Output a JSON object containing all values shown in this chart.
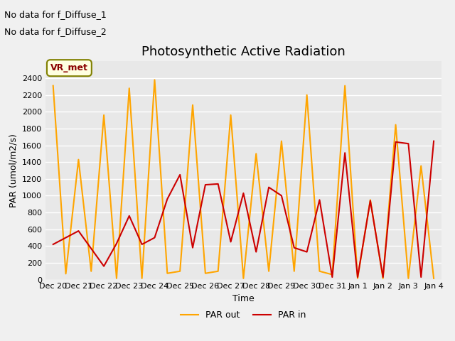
{
  "title": "Photosynthetic Active Radiation",
  "xlabel": "Time",
  "ylabel": "PAR (umol/m2/s)",
  "annotations": [
    "No data for f_Diffuse_1",
    "No data for f_Diffuse_2"
  ],
  "legend_box_label": "VR_met",
  "x_tick_labels": [
    "Dec 20",
    "Dec 21",
    "Dec 22",
    "Dec 23",
    "Dec 24",
    "Dec 25",
    "Dec 26",
    "Dec 27",
    "Dec 28",
    "Dec 29",
    "Dec 30",
    "Dec 31",
    "Jan 1",
    "Jan 2",
    "Jan 3",
    "Jan 4"
  ],
  "ylim": [
    0,
    2600
  ],
  "yticks": [
    0,
    200,
    400,
    600,
    800,
    1000,
    1200,
    1400,
    1600,
    1800,
    2000,
    2200,
    2400
  ],
  "par_in": [
    420,
    500,
    580,
    370,
    160,
    430,
    760,
    420,
    500,
    960,
    1250,
    380,
    1130,
    1140,
    450,
    1030,
    330,
    1100,
    1000,
    380,
    330,
    950,
    30,
    1510,
    30,
    940,
    30,
    1640,
    1620,
    30,
    1650
  ],
  "par_out": [
    2310,
    70,
    1430,
    100,
    1960,
    15,
    2280,
    15,
    2380,
    75,
    100,
    2080,
    75,
    100,
    1960,
    15,
    1500,
    100,
    1650,
    100,
    2200,
    100,
    60,
    2310,
    15,
    950,
    15,
    1845,
    15,
    1355,
    15
  ],
  "par_in_color": "#cc0000",
  "par_out_color": "#ffa500",
  "plot_bg_color": "#e8e8e8",
  "fig_bg_color": "#f0f0f0",
  "legend_entries": [
    "PAR in",
    "PAR out"
  ],
  "grid_color": "white",
  "title_fontsize": 13,
  "label_fontsize": 9,
  "tick_fontsize": 8,
  "linewidth": 1.5
}
